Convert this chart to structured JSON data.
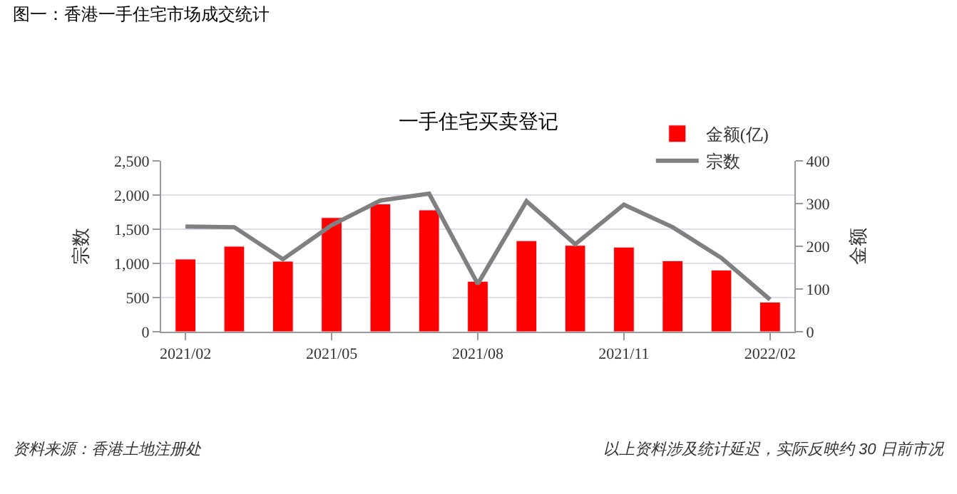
{
  "chart_data": {
    "type": "bar",
    "title": "一手住宅买卖登记",
    "ylabel": "宗数",
    "y2label": "金额",
    "categories": [
      "2021/02",
      null,
      null,
      "2021/05",
      null,
      null,
      "2021/08",
      null,
      null,
      "2021/11",
      null,
      null,
      "2022/02"
    ],
    "series": [
      {
        "name": "金额(亿)",
        "axis": "y2",
        "color": "#ff0000",
        "values": [
          170,
          200,
          165,
          267,
          299,
          285,
          118,
          213,
          202,
          198,
          166,
          144,
          69
        ]
      },
      {
        "name": "宗数",
        "type": "line",
        "axis": "y",
        "color": "#808080",
        "marker": "none",
        "values": [
          1540,
          1530,
          1060,
          1560,
          1920,
          2020,
          700,
          1910,
          1280,
          1860,
          1530,
          1080,
          470
        ]
      }
    ],
    "ylim": [
      0,
      2500
    ],
    "yticks": [
      0,
      {
        "value": 500,
        "label": "500"
      },
      {
        "value": 1000,
        "label": "1,000"
      },
      {
        "value": 1500,
        "label": "1,500"
      },
      {
        "value": 2000,
        "label": "2,000"
      },
      {
        "value": 2500,
        "label": "2,500"
      }
    ],
    "y2lim": [
      0,
      400
    ],
    "y2ticks": [
      0,
      100,
      200,
      300,
      400
    ],
    "grid": "y",
    "legend": "top right",
    "annotations": [
      "图一：香港一手住宅市场成交统计",
      "资料来源：香港土地注册处",
      "以上资料涉及统计延迟，实际反映约 30 日前市况"
    ]
  }
}
